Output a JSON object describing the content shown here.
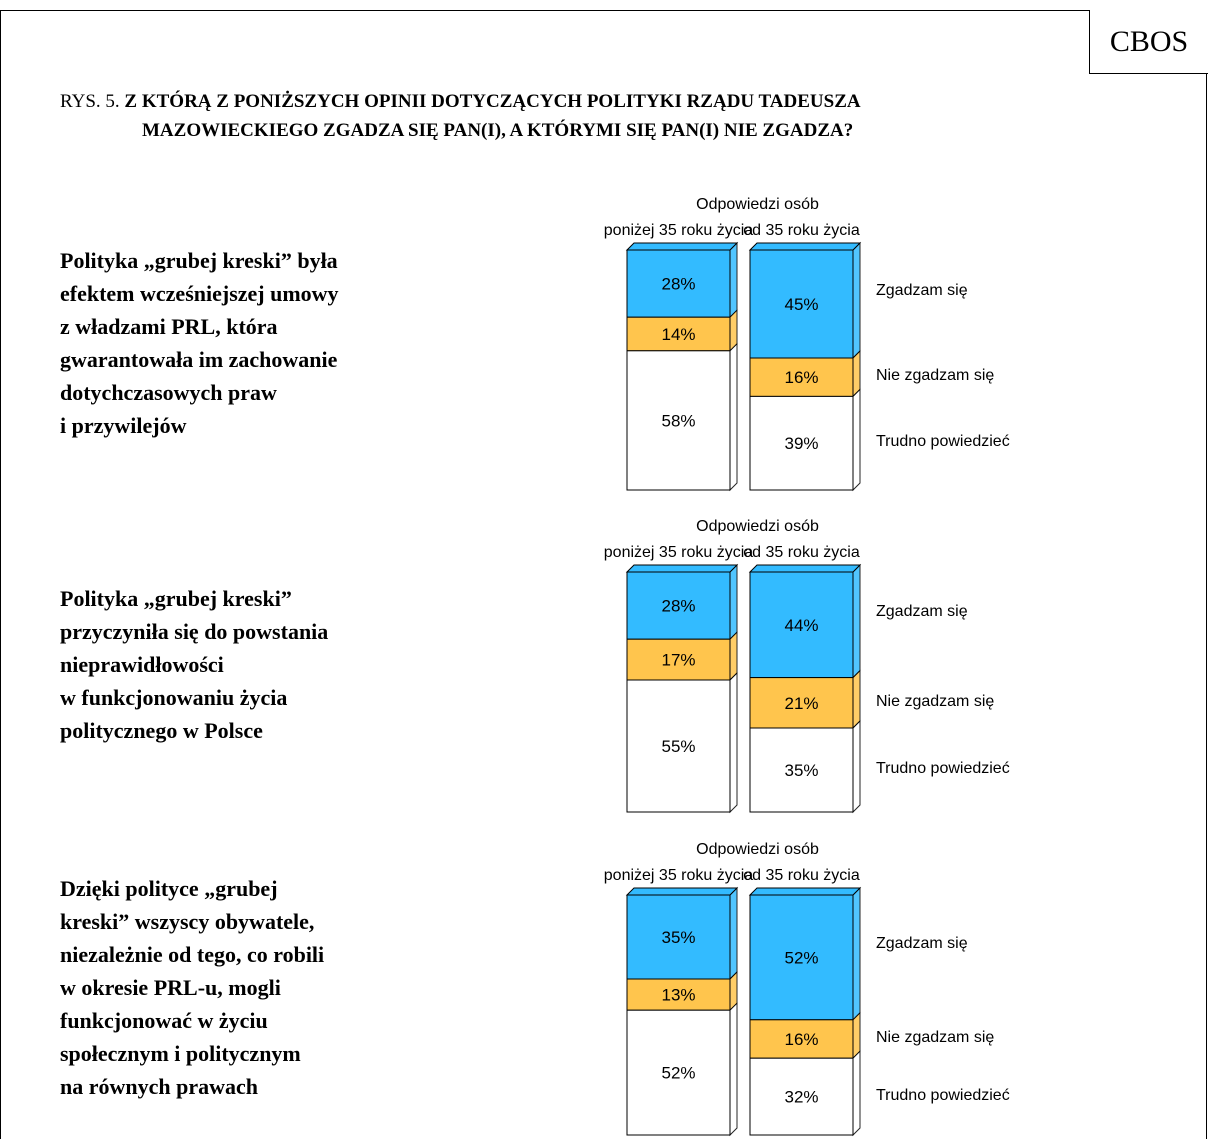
{
  "header": {
    "brand": "CBOS",
    "figure_label": "RYS. 5.",
    "title_line1": "Z KTÓRĄ Z PONIŻSZYCH OPINII DOTYCZĄCYCH POLITYKI RZĄDU TADEUSZA",
    "title_line2": "MAZOWIECKIEGO ZGADZA SIĘ PAN(I), A KTÓRYMI SIĘ PAN(I) NIE ZGADZA?"
  },
  "colors": {
    "agree": "#33bbff",
    "disagree": "#ffc54d",
    "hard": "#ffffff",
    "outline": "#000000"
  },
  "chart_data": [
    {
      "type": "bar",
      "stacked": true,
      "question": [
        "Polityka „grubej kreski” była",
        "efektem wcześniejszej umowy",
        "z władzami PRL, która",
        "gwarantowała im zachowanie",
        "dotychczasowych praw",
        "i przywilejów"
      ],
      "group_title": "Odpowiedzi osób",
      "categories": [
        "poniżej 35 roku życia",
        "od 35 roku życia"
      ],
      "series": [
        {
          "name": "Zgadzam się",
          "values": [
            28,
            45
          ]
        },
        {
          "name": "Nie zgadzam się",
          "values": [
            14,
            16
          ]
        },
        {
          "name": "Trudno powiedzieć",
          "values": [
            58,
            39
          ]
        }
      ],
      "value_labels": [
        [
          "28%",
          "14%",
          "58%"
        ],
        [
          "45%",
          "16%",
          "39%"
        ]
      ],
      "ylim": [
        0,
        100
      ]
    },
    {
      "type": "bar",
      "stacked": true,
      "question": [
        "Polityka „grubej kreski”",
        "przyczyniła się do powstania",
        "nieprawidłowości",
        "w funkcjonowaniu życia",
        "politycznego w Polsce"
      ],
      "group_title": "Odpowiedzi osób",
      "categories": [
        "poniżej 35 roku życia",
        "od 35 roku życia"
      ],
      "series": [
        {
          "name": "Zgadzam się",
          "values": [
            28,
            44
          ]
        },
        {
          "name": "Nie zgadzam się",
          "values": [
            17,
            21
          ]
        },
        {
          "name": "Trudno powiedzieć",
          "values": [
            55,
            35
          ]
        }
      ],
      "value_labels": [
        [
          "28%",
          "17%",
          "55%"
        ],
        [
          "44%",
          "21%",
          "35%"
        ]
      ],
      "ylim": [
        0,
        100
      ]
    },
    {
      "type": "bar",
      "stacked": true,
      "question": [
        "Dzięki polityce „grubej",
        "kreski”  wszyscy obywatele,",
        "niezależnie od tego, co robili",
        "w okresie PRL-u, mogli",
        "funkcjonować w życiu",
        "społecznym i politycznym",
        "na równych prawach"
      ],
      "group_title": "Odpowiedzi osób",
      "categories": [
        "poniżej 35 roku życia",
        "od 35 roku życia"
      ],
      "series": [
        {
          "name": "Zgadzam się",
          "values": [
            35,
            52
          ]
        },
        {
          "name": "Nie zgadzam się",
          "values": [
            13,
            16
          ]
        },
        {
          "name": "Trudno powiedzieć",
          "values": [
            52,
            32
          ]
        }
      ],
      "value_labels": [
        [
          "35%",
          "13%",
          "52%"
        ],
        [
          "52%",
          "16%",
          "32%"
        ]
      ],
      "ylim": [
        0,
        100
      ]
    }
  ]
}
